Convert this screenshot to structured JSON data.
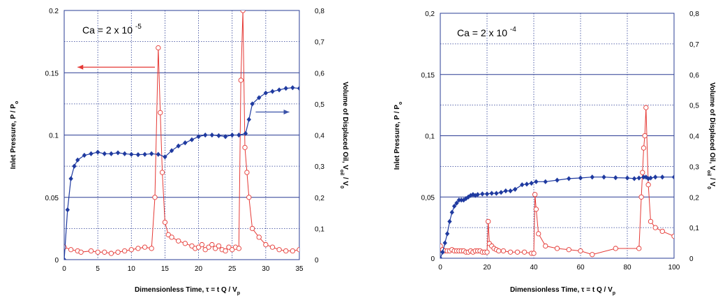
{
  "chart_data": [
    {
      "type": "line",
      "xlabel": "Dimensionless Time, τ = t Q / V",
      "xlabel_sub": "p",
      "ylabel": "Inlet Pressure, P / P",
      "ylabel_sub": "o",
      "y2label": "Volume of Displaced Oil, V",
      "y2label_sub1": "oil",
      "y2label_mid": " / V",
      "y2label_sub2": "0",
      "annotation": "Ca = 2 x 10",
      "annotation_exp": "-5",
      "xlim": [
        0,
        35
      ],
      "ylim": [
        0,
        0.2
      ],
      "y2lim": [
        0,
        0.8
      ],
      "xticks": [
        0,
        5,
        10,
        15,
        20,
        25,
        30,
        35
      ],
      "xtick_labels": [
        "0",
        "5",
        "10",
        "15",
        "20",
        "25",
        "30",
        "35"
      ],
      "yticks": [
        0,
        0.05,
        0.1,
        0.15,
        0.2
      ],
      "ytick_labels": [
        "0",
        "0.05",
        "0.1",
        "0.15",
        "0.2"
      ],
      "y2ticks": [
        0,
        0.1,
        0.2,
        0.3,
        0.4,
        0.5,
        0.6,
        0.7,
        0.8
      ],
      "y2tick_labels": [
        "0",
        "0,1",
        "0,2",
        "0,3",
        "0,4",
        "0,5",
        "0,6",
        "0,7",
        "0,8"
      ],
      "grid": true,
      "arrows": [
        {
          "direction": "left",
          "color": "#e53935",
          "from": [
            13.5,
            0.1545
          ],
          "to": [
            2.0,
            0.1545
          ]
        },
        {
          "direction": "right",
          "color": "#3a52a8",
          "from": [
            28.5,
            0.1185
          ],
          "to": [
            33.5,
            0.1185
          ]
        }
      ],
      "series": [
        {
          "axis": "left",
          "color": "#e53935",
          "marker": "open-circle",
          "x": [
            0,
            1,
            2,
            2.5,
            4,
            5,
            6,
            7,
            8,
            9,
            10,
            11,
            12,
            13,
            13.5,
            14,
            14.3,
            14.6,
            15,
            15.5,
            16,
            17,
            18,
            19,
            19.5,
            20,
            20.5,
            21,
            21.5,
            22,
            22.5,
            23,
            23.5,
            24,
            24.5,
            25,
            25.5,
            26,
            26.3,
            26.6,
            26.9,
            27.2,
            27.5,
            28,
            29,
            30,
            31,
            32,
            33,
            34,
            35
          ],
          "y": [
            0.01,
            0.008,
            0.007,
            0.006,
            0.007,
            0.006,
            0.006,
            0.005,
            0.006,
            0.007,
            0.008,
            0.009,
            0.01,
            0.009,
            0.05,
            0.17,
            0.118,
            0.07,
            0.03,
            0.02,
            0.018,
            0.015,
            0.013,
            0.011,
            0.009,
            0.01,
            0.012,
            0.008,
            0.01,
            0.012,
            0.009,
            0.011,
            0.008,
            0.007,
            0.01,
            0.008,
            0.01,
            0.009,
            0.144,
            0.2,
            0.09,
            0.07,
            0.05,
            0.025,
            0.018,
            0.012,
            0.01,
            0.008,
            0.007,
            0.007,
            0.008
          ]
        },
        {
          "axis": "right",
          "color": "#1f3aa0",
          "marker": "filled-diamond",
          "x": [
            0,
            0.5,
            1,
            1.5,
            2,
            3,
            4,
            5,
            6,
            7,
            8,
            9,
            10,
            11,
            12,
            13,
            14,
            15,
            16,
            17,
            18,
            19,
            20,
            21,
            22,
            23,
            24,
            25,
            26,
            27,
            27.5,
            28,
            29,
            30,
            31,
            32,
            33,
            34,
            35
          ],
          "y": [
            0,
            0.16,
            0.26,
            0.3,
            0.32,
            0.335,
            0.34,
            0.345,
            0.34,
            0.34,
            0.343,
            0.34,
            0.338,
            0.337,
            0.338,
            0.34,
            0.338,
            0.33,
            0.35,
            0.365,
            0.375,
            0.385,
            0.395,
            0.4,
            0.4,
            0.398,
            0.395,
            0.4,
            0.4,
            0.405,
            0.45,
            0.5,
            0.52,
            0.535,
            0.54,
            0.545,
            0.55,
            0.552,
            0.55
          ]
        }
      ]
    },
    {
      "type": "line",
      "xlabel": "Dimensionless Time, τ = t Q / V",
      "xlabel_sub": "p",
      "ylabel": "Inlet Pressure, P / P",
      "ylabel_sub": "o",
      "y2label": "Volume of Displaced Oil, V",
      "y2label_sub1": "oil",
      "y2label_mid": " / V",
      "y2label_sub2": "0",
      "annotation": "Ca = 2 x 10",
      "annotation_exp": "-4",
      "xlim": [
        0,
        100
      ],
      "ylim": [
        0,
        0.2
      ],
      "y2lim": [
        0,
        0.8
      ],
      "xticks": [
        0,
        20,
        40,
        60,
        80,
        100
      ],
      "xtick_labels": [
        "0",
        "20",
        "40",
        "60",
        "80",
        "100"
      ],
      "yticks": [
        0,
        0.05,
        0.1,
        0.15,
        0.2
      ],
      "ytick_labels": [
        "0",
        "0,05",
        "0,1",
        "0,15",
        "0,2"
      ],
      "y2ticks": [
        0,
        0.1,
        0.2,
        0.3,
        0.4,
        0.5,
        0.6,
        0.7,
        0.8
      ],
      "y2tick_labels": [
        "0",
        "0,1",
        "0,2",
        "0,3",
        "0,4",
        "0,5",
        "0,6",
        "0,7",
        "0,8"
      ],
      "grid": true,
      "arrows": [],
      "series": [
        {
          "axis": "left",
          "color": "#e53935",
          "marker": "open-circle",
          "x": [
            0,
            1,
            2,
            3,
            4,
            5,
            6,
            7,
            8,
            9,
            10,
            11,
            12,
            13,
            14,
            15,
            16,
            17,
            18,
            19,
            20,
            20.5,
            21,
            22,
            23,
            24,
            25,
            27,
            30,
            33,
            36,
            39,
            40,
            40.5,
            41,
            42,
            45,
            50,
            55,
            60,
            65,
            75,
            85,
            86,
            86.5,
            87,
            87.5,
            88,
            89,
            90,
            92,
            95,
            100
          ],
          "y": [
            0.01,
            0.007,
            0.006,
            0.006,
            0.006,
            0.007,
            0.006,
            0.006,
            0.006,
            0.006,
            0.006,
            0.005,
            0.005,
            0.006,
            0.005,
            0.006,
            0.006,
            0.006,
            0.005,
            0.005,
            0.005,
            0.03,
            0.012,
            0.01,
            0.008,
            0.007,
            0.006,
            0.006,
            0.005,
            0.005,
            0.005,
            0.004,
            0.004,
            0.052,
            0.04,
            0.02,
            0.01,
            0.008,
            0.007,
            0.006,
            0.003,
            0.008,
            0.008,
            0.05,
            0.07,
            0.09,
            0.1,
            0.123,
            0.06,
            0.03,
            0.025,
            0.022,
            0.018
          ]
        },
        {
          "axis": "right",
          "color": "#1f3aa0",
          "marker": "filled-diamond",
          "x": [
            0,
            1,
            2,
            3,
            4,
            5,
            6,
            7,
            8,
            9,
            10,
            11,
            12,
            13,
            14,
            15,
            16,
            18,
            20,
            22,
            24,
            26,
            28,
            30,
            32,
            35,
            37,
            39,
            41,
            45,
            50,
            55,
            60,
            65,
            70,
            75,
            80,
            83,
            85,
            87,
            88,
            89,
            90,
            92,
            95,
            100
          ],
          "y": [
            0,
            0.02,
            0.05,
            0.08,
            0.12,
            0.15,
            0.17,
            0.18,
            0.19,
            0.19,
            0.19,
            0.195,
            0.2,
            0.205,
            0.208,
            0.205,
            0.208,
            0.21,
            0.21,
            0.212,
            0.212,
            0.215,
            0.22,
            0.22,
            0.225,
            0.24,
            0.242,
            0.245,
            0.25,
            0.25,
            0.255,
            0.26,
            0.262,
            0.265,
            0.265,
            0.263,
            0.262,
            0.26,
            0.262,
            0.265,
            0.265,
            0.26,
            0.262,
            0.265,
            0.265,
            0.265
          ]
        }
      ]
    }
  ]
}
